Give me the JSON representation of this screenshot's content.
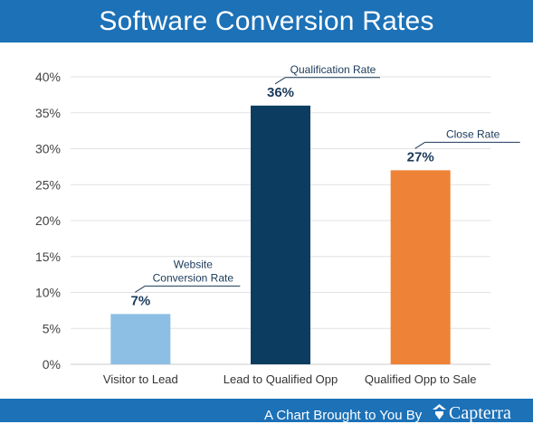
{
  "header": {
    "title": "Software Conversion Rates"
  },
  "footer": {
    "text": "A Chart Brought to You By",
    "brand": "Capterra",
    "brand_icon": "capterra-logo-icon"
  },
  "chart_data": {
    "type": "bar",
    "categories": [
      "Visitor to Lead",
      "Lead to Qualified Opp",
      "Qualified Opp to Sale"
    ],
    "values": [
      7,
      36,
      27
    ],
    "value_labels": [
      "7%",
      "36%",
      "27%"
    ],
    "colors": [
      "#8dbee3",
      "#0c3d61",
      "#ee8236"
    ],
    "annotations": [
      [
        "Website",
        "Conversion Rate"
      ],
      [
        "Qualification Rate"
      ],
      [
        "Close Rate"
      ]
    ],
    "ylim": [
      0,
      40
    ],
    "yticks": [
      0,
      5,
      10,
      15,
      20,
      25,
      30,
      35,
      40
    ],
    "ytick_labels": [
      "0%",
      "5%",
      "10%",
      "15%",
      "20%",
      "25%",
      "30%",
      "35%",
      "40%"
    ],
    "grid": true,
    "legend": "none"
  }
}
